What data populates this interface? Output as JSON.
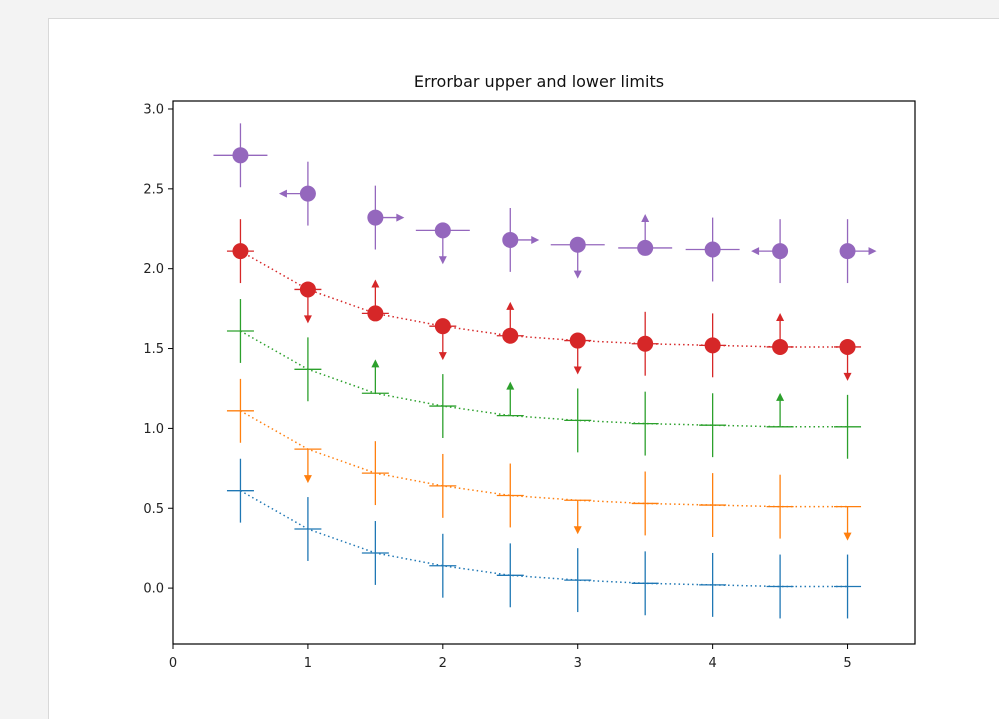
{
  "chart_data": {
    "type": "scatter",
    "title": "Errorbar upper and lower limits",
    "xlabel": "",
    "ylabel": "",
    "xlim": [
      0,
      5.5
    ],
    "ylim": [
      -0.35,
      3.05
    ],
    "x_ticks": [
      0,
      1,
      2,
      3,
      4,
      5
    ],
    "y_ticks": [
      0.0,
      0.5,
      1.0,
      1.5,
      2.0,
      2.5,
      3.0
    ],
    "x_tick_labels": [
      "0",
      "1",
      "2",
      "3",
      "4",
      "5"
    ],
    "y_tick_labels": [
      "0.0",
      "0.5",
      "1.0",
      "1.5",
      "2.0",
      "2.5",
      "3.0"
    ],
    "grid": false,
    "series": [
      {
        "color": "#1f77b4",
        "marker": "none",
        "linestyle": "dotted",
        "x": [
          0.5,
          1.0,
          1.5,
          2.0,
          2.5,
          3.0,
          3.5,
          4.0,
          4.5,
          5.0
        ],
        "y": [
          0.61,
          0.37,
          0.22,
          0.14,
          0.08,
          0.05,
          0.03,
          0.02,
          0.01,
          0.01
        ],
        "xerr": [
          0.1,
          0.1,
          0.1,
          0.1,
          0.1,
          0.1,
          0.1,
          0.1,
          0.1,
          0.1
        ],
        "yerr": [
          0.2,
          0.2,
          0.2,
          0.2,
          0.2,
          0.2,
          0.2,
          0.2,
          0.2,
          0.2
        ]
      },
      {
        "color": "#ff7f0e",
        "marker": "none",
        "linestyle": "dotted",
        "x": [
          0.5,
          1.0,
          1.5,
          2.0,
          2.5,
          3.0,
          3.5,
          4.0,
          4.5,
          5.0
        ],
        "y": [
          1.11,
          0.87,
          0.72,
          0.64,
          0.58,
          0.55,
          0.53,
          0.52,
          0.51,
          0.51
        ],
        "xerr": [
          0.1,
          0.1,
          0.1,
          0.1,
          0.1,
          0.1,
          0.1,
          0.1,
          0.1,
          0.1
        ],
        "yerr": [
          0.2,
          0.2,
          0.2,
          0.2,
          0.2,
          0.2,
          0.2,
          0.2,
          0.2,
          0.2
        ],
        "lower_limits": [
          false,
          true,
          false,
          false,
          false,
          true,
          false,
          false,
          false,
          true
        ]
      },
      {
        "color": "#2ca02c",
        "marker": "none",
        "linestyle": "dotted",
        "x": [
          0.5,
          1.0,
          1.5,
          2.0,
          2.5,
          3.0,
          3.5,
          4.0,
          4.5,
          5.0
        ],
        "y": [
          1.61,
          1.37,
          1.22,
          1.14,
          1.08,
          1.05,
          1.03,
          1.02,
          1.01,
          1.01
        ],
        "xerr": [
          0.1,
          0.1,
          0.1,
          0.1,
          0.1,
          0.1,
          0.1,
          0.1,
          0.1,
          0.1
        ],
        "yerr": [
          0.2,
          0.2,
          0.2,
          0.2,
          0.2,
          0.2,
          0.2,
          0.2,
          0.2,
          0.2
        ],
        "upper_limits": [
          false,
          false,
          true,
          false,
          true,
          false,
          false,
          false,
          true,
          false
        ]
      },
      {
        "color": "#d62728",
        "marker": "o",
        "linestyle": "dotted",
        "x": [
          0.5,
          1.0,
          1.5,
          2.0,
          2.5,
          3.0,
          3.5,
          4.0,
          4.5,
          5.0
        ],
        "y": [
          2.11,
          1.87,
          1.72,
          1.64,
          1.58,
          1.55,
          1.53,
          1.52,
          1.51,
          1.51
        ],
        "xerr": [
          0.1,
          0.1,
          0.1,
          0.1,
          0.1,
          0.1,
          0.1,
          0.1,
          0.1,
          0.1
        ],
        "yerr": [
          0.2,
          0.2,
          0.2,
          0.2,
          0.2,
          0.2,
          0.2,
          0.2,
          0.2,
          0.2
        ],
        "upper_limits": [
          false,
          false,
          true,
          false,
          true,
          false,
          false,
          false,
          true,
          false
        ],
        "lower_limits": [
          false,
          true,
          false,
          true,
          false,
          true,
          false,
          false,
          false,
          true
        ]
      },
      {
        "color": "#9467bd",
        "marker": "o",
        "linestyle": "none",
        "x": [
          0.5,
          1.0,
          1.5,
          2.0,
          2.5,
          3.0,
          3.5,
          4.0,
          4.5,
          5.0
        ],
        "y": [
          2.71,
          2.47,
          2.32,
          2.24,
          2.18,
          2.15,
          2.13,
          2.12,
          2.11,
          2.11
        ],
        "xerr": [
          0.2,
          0.2,
          0.2,
          0.2,
          0.2,
          0.2,
          0.2,
          0.2,
          0.2,
          0.2
        ],
        "yerr": [
          0.2,
          0.2,
          0.2,
          0.2,
          0.2,
          0.2,
          0.2,
          0.2,
          0.2,
          0.2
        ],
        "x_lower_limits": [
          false,
          true,
          false,
          false,
          false,
          false,
          false,
          false,
          true,
          false
        ],
        "x_upper_limits": [
          false,
          false,
          true,
          false,
          true,
          false,
          false,
          false,
          false,
          true
        ],
        "y_upper_limits": [
          false,
          false,
          false,
          false,
          false,
          false,
          true,
          false,
          false,
          false
        ],
        "y_lower_limits": [
          false,
          false,
          false,
          true,
          false,
          true,
          false,
          false,
          false,
          false
        ]
      }
    ]
  }
}
